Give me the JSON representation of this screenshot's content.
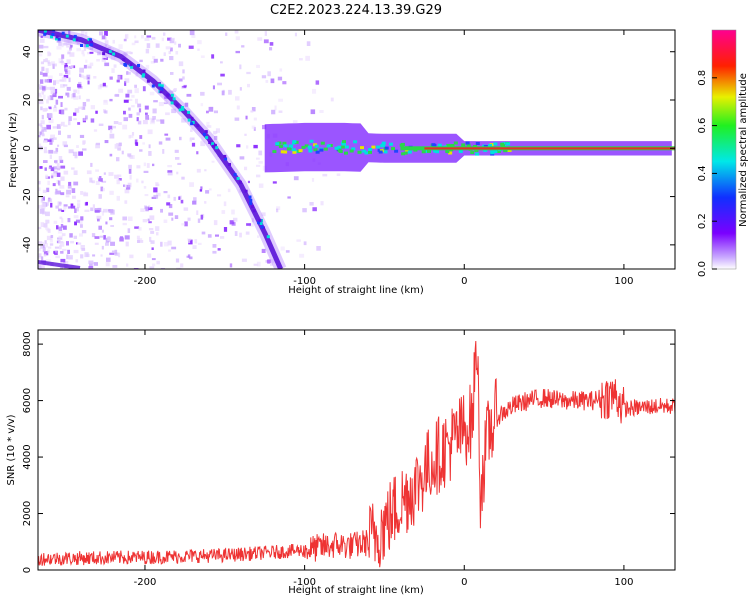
{
  "title": "C2E2.2023.224.13.39.G29",
  "colors": {
    "snr_line": "#ee3333",
    "ridge": "#5a14d8",
    "carrier_core": "#e0322a"
  },
  "chart_data": [
    {
      "type": "heatmap",
      "xlabel": "Height of straight line (km)",
      "ylabel": "Frequency (Hz)",
      "xlim": [
        -267,
        132
      ],
      "ylim": [
        -50,
        49
      ],
      "xticks": [
        -200,
        -100,
        0,
        100
      ],
      "yticks": [
        -40,
        -20,
        0,
        20,
        40
      ],
      "colorbar": {
        "label": "Normalized spectral amplitude",
        "range": [
          0,
          1
        ],
        "ticks": [
          "0.0",
          "0.2",
          "0.4",
          "0.6",
          "0.8"
        ],
        "colormap": "rainbow (white-violet-blue-cyan-green-yellow-red-magenta)"
      },
      "features": {
        "descending_trace": {
          "x": [
            -267,
            -240,
            -215,
            -195,
            -175,
            -160,
            -140,
            -125,
            -115
          ],
          "y": [
            49,
            45,
            38,
            28,
            15,
            4,
            -15,
            -35,
            -50
          ]
        },
        "carrier_line": {
          "x": [
            -125,
            -100,
            -75,
            -50,
            -25,
            0,
            50,
            100,
            132
          ],
          "y": [
            0,
            0.5,
            0.5,
            0,
            0,
            0,
            0,
            0,
            0
          ]
        }
      }
    },
    {
      "type": "line",
      "xlabel": "Height of straight line (km)",
      "ylabel": "SNR (10 * v/v)",
      "xlim": [
        -267,
        132
      ],
      "ylim": [
        0,
        8500
      ],
      "xticks": [
        -200,
        -100,
        0,
        100
      ],
      "yticks": [
        0,
        2000,
        4000,
        6000,
        8000
      ],
      "series": [
        {
          "x": [
            -267,
            -200,
            -150,
            -100,
            -80,
            -70,
            -60,
            -50,
            -40,
            -30,
            -20,
            -10,
            0,
            5,
            8,
            10,
            15,
            20,
            30,
            40,
            50,
            60,
            70,
            80,
            90,
            95,
            100,
            110,
            120,
            132
          ],
          "values": [
            400,
            450,
            520,
            700,
            900,
            850,
            1000,
            1600,
            2400,
            3000,
            3900,
            4400,
            5000,
            5300,
            8300,
            2800,
            4800,
            5400,
            5800,
            6000,
            6100,
            6000,
            6000,
            6000,
            6150,
            6200,
            5700,
            5750,
            5800,
            5800
          ]
        }
      ]
    }
  ]
}
